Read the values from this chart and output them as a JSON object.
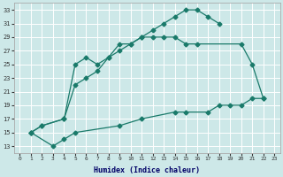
{
  "background_color": "#cde8e8",
  "grid_color": "#b8d8d8",
  "line_color": "#1a7a6a",
  "xlabel": "Humidex (Indice chaleur)",
  "xlim": [
    -0.5,
    23.5
  ],
  "ylim": [
    12,
    34
  ],
  "yticks": [
    13,
    15,
    17,
    19,
    21,
    23,
    25,
    27,
    29,
    31,
    33
  ],
  "xticks": [
    0,
    1,
    2,
    3,
    4,
    5,
    6,
    7,
    8,
    9,
    10,
    11,
    12,
    13,
    14,
    15,
    16,
    17,
    18,
    19,
    20,
    21,
    22,
    23
  ],
  "curve1_x": [
    1,
    2,
    4,
    5,
    6,
    7,
    8,
    9,
    10,
    11,
    12,
    13,
    14,
    15,
    16,
    17,
    18
  ],
  "curve1_y": [
    15,
    16,
    17,
    22,
    23,
    24,
    26,
    27,
    28,
    29,
    30,
    31,
    32,
    33,
    33,
    32,
    31
  ],
  "curve2_x": [
    1,
    2,
    4,
    5,
    6,
    7,
    8,
    9,
    10,
    11,
    12,
    13,
    14,
    15,
    16,
    20,
    21,
    22
  ],
  "curve2_y": [
    15,
    16,
    17,
    25,
    26,
    25,
    26,
    28,
    28,
    29,
    29,
    29,
    29,
    28,
    28,
    28,
    25,
    20
  ],
  "curve3_x": [
    1,
    3,
    4,
    5,
    9,
    11,
    14,
    15,
    17,
    18,
    19,
    20,
    21,
    22
  ],
  "curve3_y": [
    15,
    13,
    14,
    15,
    16,
    17,
    18,
    18,
    18,
    19,
    19,
    19,
    20,
    20
  ]
}
